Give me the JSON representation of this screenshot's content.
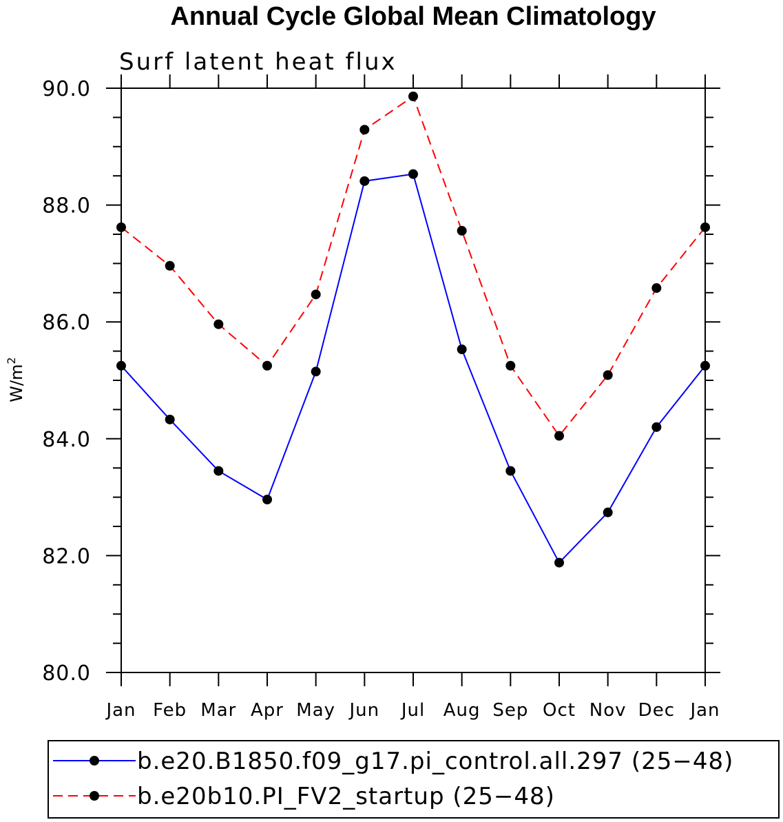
{
  "chart_data": {
    "type": "line",
    "title": "Annual Cycle Global Mean Climatology",
    "subtitle": "Surf latent heat flux",
    "ylabel": "W/m",
    "ylabel_superscript": "2",
    "xlabel": "",
    "categories": [
      "Jan",
      "Feb",
      "Mar",
      "Apr",
      "May",
      "Jun",
      "Jul",
      "Aug",
      "Sep",
      "Oct",
      "Nov",
      "Dec",
      "Jan"
    ],
    "ylim": [
      80.0,
      90.0
    ],
    "yticks": [
      "80.0",
      "82.0",
      "84.0",
      "86.0",
      "88.0",
      "90.0"
    ],
    "grid": false,
    "legend_position": "bottom",
    "series": [
      {
        "name": "b.e20.B1850.f09_g17.pi_control.all.297 (25−48)",
        "color": "#0000ff",
        "dash": "solid",
        "marker": "filled-circle",
        "values": [
          85.25,
          84.33,
          83.45,
          82.96,
          85.15,
          88.41,
          88.53,
          85.53,
          83.45,
          81.88,
          82.74,
          84.2,
          85.25
        ]
      },
      {
        "name": "b.e20b10.PI_FV2_startup (25−48)",
        "color": "#ff0000",
        "dash": "dashed",
        "marker": "filled-circle",
        "values": [
          87.62,
          86.96,
          85.96,
          85.25,
          86.47,
          89.29,
          89.86,
          87.56,
          85.25,
          84.05,
          85.09,
          86.58,
          87.62
        ]
      }
    ],
    "marker_color": "#000000"
  }
}
